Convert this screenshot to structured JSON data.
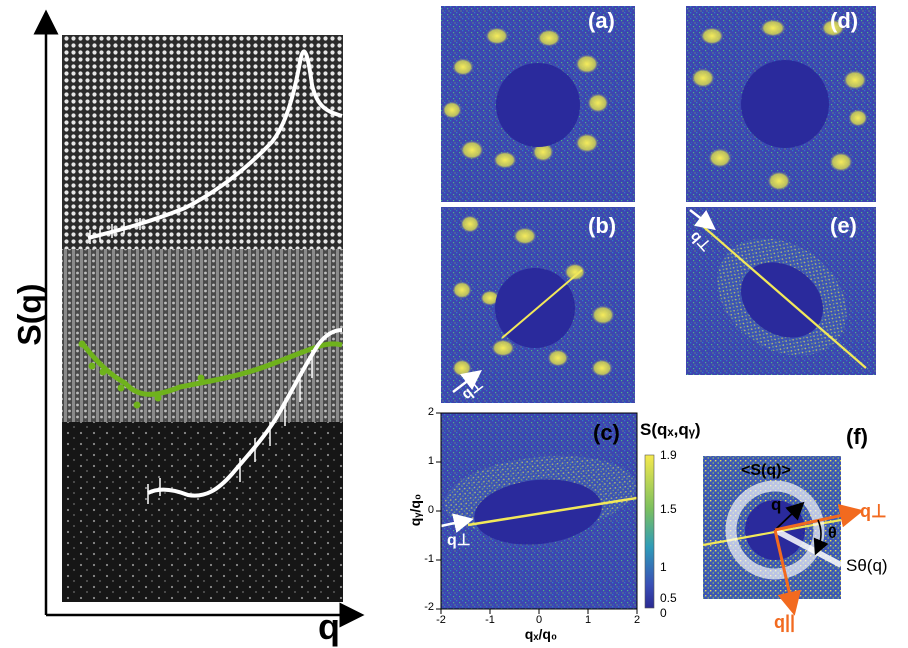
{
  "left_panel": {
    "y_axis_label": "S(q)",
    "x_axis_label": "q"
  },
  "panels": {
    "a": "(a)",
    "b": "(b)",
    "c": "(c)",
    "d": "(d)",
    "e": "(e)",
    "f": "(f)"
  },
  "panel_b_arrow_label": "q⊥",
  "panel_e_arrow_label": "q⊥",
  "panel_c": {
    "colorbar_title": "S(qₓ,qᵧ)",
    "colorbar_ticks": [
      "1.9",
      "1.5",
      "1",
      "0.5",
      "0"
    ],
    "x_axis_label": "qₓ/q₀",
    "y_axis_label": "qᵧ/q₀",
    "x_ticks": [
      "-2",
      "-1",
      "0",
      "1",
      "2"
    ],
    "y_ticks": [
      "2",
      "1",
      "0",
      "-1",
      "-2"
    ],
    "arrow_label": "q⊥"
  },
  "panel_f": {
    "ring_label": "<S(q)>",
    "q_label": "q",
    "q_perp_label": "q⊥",
    "q_par_label": "q||",
    "theta_label": "θ",
    "s_theta_label": "Sθ(q)"
  },
  "colors": {
    "background_blue": "#3a3fa8",
    "speckle_yellow": "#f2e85a",
    "center_blue": "#2a2a9c",
    "green_points": "#6fb21c",
    "arrow_orange": "#f26a1f"
  }
}
